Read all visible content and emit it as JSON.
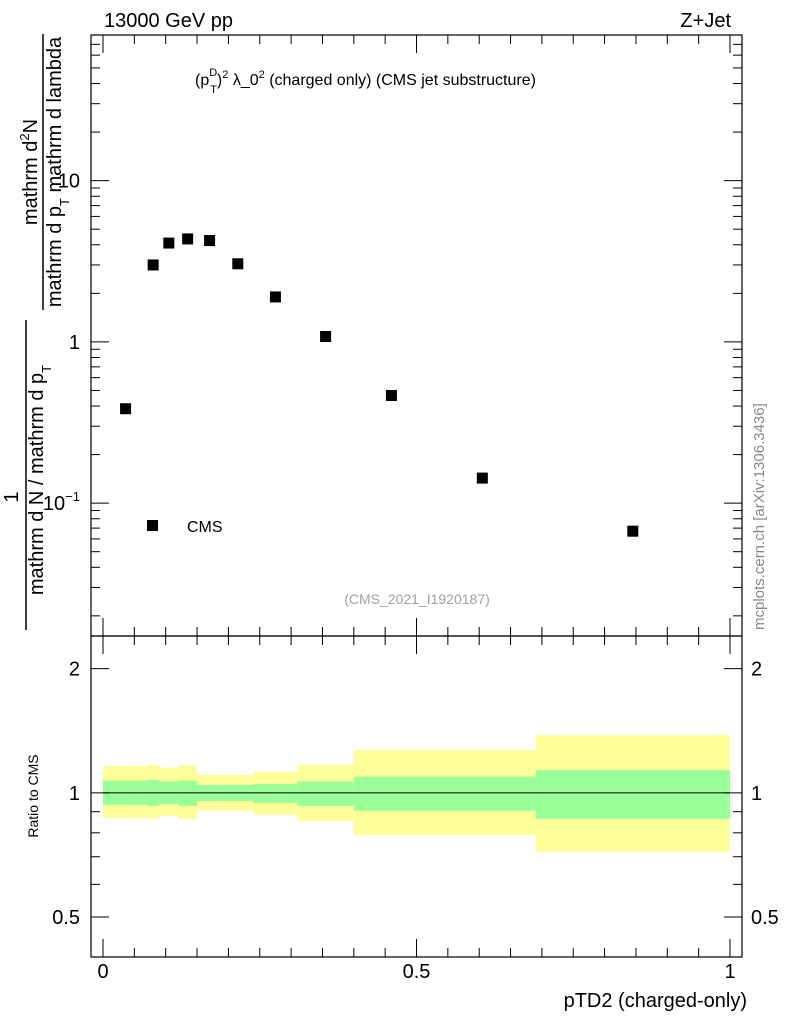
{
  "header": {
    "energy_label": "13000 GeV pp",
    "process_label": "Z+Jet"
  },
  "side_label": "mcplots.cern.ch [arXiv:1306.3436]",
  "chart_data": [
    {
      "type": "scatter",
      "panel": "main",
      "title": "(p_T^D)^2 λ_0^2 (charged only) (CMS jet substructure)",
      "title_parts": {
        "p": "(p",
        "sub": "T",
        "sup": "D",
        "rest": ")",
        "sq": "2",
        "lambda": " λ_0",
        "sq2": "2",
        "tail": " (charged only) (CMS jet substructure)"
      },
      "ylabel_numerator": "mathrm d²N",
      "ylabel_num_parts": {
        "a": "mathrm d",
        "sup": "2",
        "b": "N"
      },
      "ylabel_den_parts": {
        "a": "mathrm d p",
        "sub": "T",
        "b": " mathrm d lambda"
      },
      "ylabel_lhs_one": "1",
      "ylabel_lhs_den_parts": {
        "a": "mathrm d N / mathrm d p",
        "sub": "T",
        "b": ""
      },
      "yscale": "log",
      "ylim": [
        0.015,
        80
      ],
      "xlim": [
        -0.04,
        1.02
      ],
      "y_ticks": [
        {
          "value": 10,
          "label": "10"
        },
        {
          "value": 1,
          "label": "1"
        },
        {
          "value": 0.1,
          "label": "10",
          "sup": "−1"
        }
      ],
      "series": [
        {
          "name": "CMS",
          "marker": "square",
          "x": [
            0.036,
            0.08,
            0.105,
            0.135,
            0.17,
            0.215,
            0.275,
            0.355,
            0.46,
            0.605,
            0.845
          ],
          "y": [
            0.385,
            3.0,
            4.1,
            4.35,
            4.25,
            3.05,
            1.9,
            1.08,
            0.465,
            0.143,
            0.067
          ]
        }
      ],
      "legend": {
        "label": "CMS",
        "position": "bottom-left"
      },
      "analysis_label": "(CMS_2021_I1920187)"
    },
    {
      "type": "area",
      "panel": "ratio",
      "ylabel": "Ratio to CMS",
      "xlabel": "pTD2 (charged-only)",
      "ylim": [
        0.4,
        2.4
      ],
      "xlim": [
        -0.04,
        1.02
      ],
      "x_ticks": [
        {
          "value": 0,
          "label": "0"
        },
        {
          "value": 0.5,
          "label": "0.5"
        },
        {
          "value": 1,
          "label": "1"
        }
      ],
      "y_ticks": [
        {
          "value": 2,
          "label": "2"
        },
        {
          "value": 1,
          "label": "1"
        },
        {
          "value": 0.5,
          "label": "0.5"
        }
      ],
      "reference_line": 1,
      "bands": {
        "x_edges": [
          0.0,
          0.07,
          0.09,
          0.12,
          0.15,
          0.19,
          0.24,
          0.31,
          0.4,
          0.52,
          0.69,
          1.0
        ],
        "inner_low": [
          0.935,
          0.93,
          0.94,
          0.93,
          0.955,
          0.955,
          0.945,
          0.93,
          0.905,
          0.905,
          0.865
        ],
        "inner_high": [
          1.07,
          1.075,
          1.065,
          1.07,
          1.045,
          1.045,
          1.05,
          1.065,
          1.095,
          1.095,
          1.135
        ],
        "outer_low": [
          0.87,
          0.865,
          0.88,
          0.865,
          0.905,
          0.905,
          0.885,
          0.855,
          0.79,
          0.79,
          0.72
        ],
        "outer_high": [
          1.16,
          1.17,
          1.15,
          1.165,
          1.105,
          1.105,
          1.125,
          1.17,
          1.27,
          1.27,
          1.38
        ]
      },
      "colors": {
        "inner": "#99ff99",
        "outer": "#ffff99"
      }
    }
  ]
}
